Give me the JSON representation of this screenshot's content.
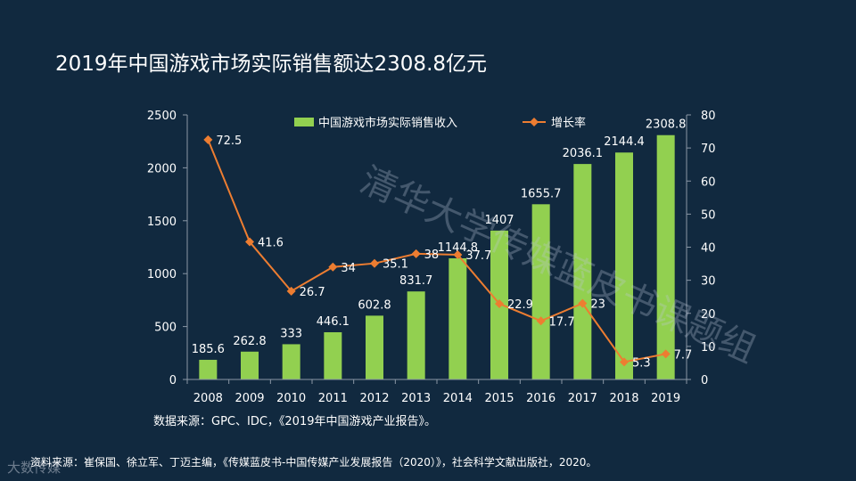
{
  "title": "2019年中国游戏市场实际销售额达2308.8亿元",
  "watermark": "清华大学传媒蓝皮书课题组",
  "brand": "大数传媒",
  "source_note": "数据来源：GPC、IDC，《2019年中国游戏产业报告》。",
  "reference": "资料来源：崔保国、徐立军、丁迈主编，《传媒蓝皮书-中国传媒产业发展报告（2020）》，社会科学文献出版社，2020。",
  "colors": {
    "background": "#11293f",
    "bar": "#92d050",
    "line": "#ed7d31",
    "axis_text": "#ffffff"
  },
  "chart_data": {
    "type": "bar+line",
    "categories": [
      "2008",
      "2009",
      "2010",
      "2011",
      "2012",
      "2013",
      "2014",
      "2015",
      "2016",
      "2017",
      "2018",
      "2019"
    ],
    "series": [
      {
        "name": "中国游戏市场实际销售收入",
        "type": "bar",
        "axis": "left",
        "values": [
          185.6,
          262.8,
          333,
          446.1,
          602.8,
          831.7,
          1144.8,
          1407,
          1655.7,
          2036.1,
          2144.4,
          2308.8
        ],
        "labels": [
          "185.6",
          "262.8",
          "333",
          "446.1",
          "602.8",
          "831.7",
          "1144.8",
          "1407",
          "1655.7",
          "2036.1",
          "2144.4",
          "2308.8"
        ]
      },
      {
        "name": "增长率",
        "type": "line",
        "axis": "right",
        "values": [
          72.5,
          41.6,
          26.7,
          34,
          35.1,
          38,
          37.7,
          22.9,
          17.7,
          23,
          5.3,
          7.7
        ],
        "labels": [
          "72.5",
          "41.6",
          "26.7",
          "34",
          "35.1",
          "38",
          "37.7",
          "22.9",
          "17.7",
          "23",
          "5.3",
          "7.7"
        ]
      }
    ],
    "left_axis": {
      "min": 0,
      "max": 2500,
      "ticks": [
        "0",
        "500",
        "1000",
        "1500",
        "2000",
        "2500"
      ]
    },
    "right_axis": {
      "min": 0,
      "max": 80,
      "ticks": [
        "0",
        "10",
        "20",
        "30",
        "40",
        "50",
        "60",
        "70",
        "80"
      ]
    },
    "legend_position": "top"
  }
}
